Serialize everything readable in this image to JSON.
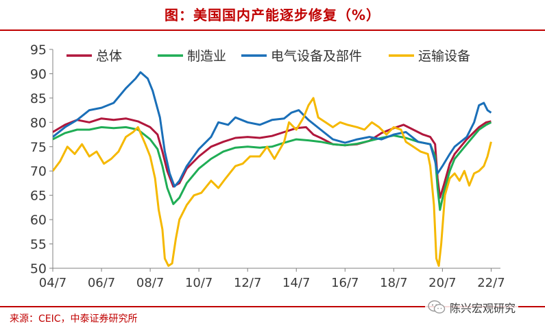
{
  "header": {
    "title": "图：美国国内产能逐步修复（%）"
  },
  "footer": {
    "source": "来源：CEIC，中泰证券研究所"
  },
  "watermark": {
    "text": "陈兴宏观研究",
    "icon": "wechat-icon"
  },
  "chart_data": {
    "type": "line",
    "title": "",
    "xlabel": "",
    "ylabel": "",
    "ylim": [
      50,
      95
    ],
    "yticks": [
      50,
      55,
      60,
      65,
      70,
      75,
      80,
      85,
      90,
      95
    ],
    "xlim": [
      2004.5,
      2022.6
    ],
    "xticks": [
      {
        "label": "04/7",
        "value": 2004.5
      },
      {
        "label": "06/7",
        "value": 2006.5
      },
      {
        "label": "08/7",
        "value": 2008.5
      },
      {
        "label": "10/7",
        "value": 2010.5
      },
      {
        "label": "12/7",
        "value": 2012.5
      },
      {
        "label": "14/7",
        "value": 2014.5
      },
      {
        "label": "16/7",
        "value": 2016.5
      },
      {
        "label": "18/7",
        "value": 2018.5
      },
      {
        "label": "20/7",
        "value": 2020.5
      },
      {
        "label": "22/7",
        "value": 2022.5
      }
    ],
    "grid": false,
    "legend_position": "top",
    "series": [
      {
        "name": "总体",
        "color": "#b0173c",
        "points": [
          [
            2004.5,
            78.0
          ],
          [
            2005.0,
            79.5
          ],
          [
            2005.5,
            80.5
          ],
          [
            2006.0,
            80.0
          ],
          [
            2006.5,
            80.8
          ],
          [
            2007.0,
            80.5
          ],
          [
            2007.5,
            80.8
          ],
          [
            2008.0,
            80.2
          ],
          [
            2008.5,
            79.0
          ],
          [
            2008.8,
            77.5
          ],
          [
            2009.0,
            74.0
          ],
          [
            2009.2,
            70.0
          ],
          [
            2009.45,
            66.8
          ],
          [
            2009.7,
            67.5
          ],
          [
            2010.0,
            70.5
          ],
          [
            2010.5,
            73.0
          ],
          [
            2011.0,
            75.0
          ],
          [
            2011.5,
            76.0
          ],
          [
            2012.0,
            76.8
          ],
          [
            2012.5,
            77.0
          ],
          [
            2013.0,
            76.8
          ],
          [
            2013.5,
            77.2
          ],
          [
            2014.0,
            78.0
          ],
          [
            2014.5,
            78.8
          ],
          [
            2014.9,
            79.0
          ],
          [
            2015.2,
            77.5
          ],
          [
            2015.5,
            76.8
          ],
          [
            2016.0,
            75.5
          ],
          [
            2016.5,
            75.3
          ],
          [
            2017.0,
            75.5
          ],
          [
            2017.5,
            76.2
          ],
          [
            2018.0,
            77.8
          ],
          [
            2018.5,
            78.8
          ],
          [
            2018.9,
            79.5
          ],
          [
            2019.3,
            78.5
          ],
          [
            2019.7,
            77.5
          ],
          [
            2020.0,
            77.0
          ],
          [
            2020.2,
            75.5
          ],
          [
            2020.3,
            68.5
          ],
          [
            2020.4,
            64.5
          ],
          [
            2020.55,
            67.0
          ],
          [
            2020.8,
            71.5
          ],
          [
            2021.0,
            73.5
          ],
          [
            2021.5,
            76.5
          ],
          [
            2022.0,
            79.0
          ],
          [
            2022.3,
            80.0
          ],
          [
            2022.5,
            80.2
          ]
        ]
      },
      {
        "name": "制造业",
        "color": "#1fad55",
        "points": [
          [
            2004.5,
            76.5
          ],
          [
            2005.0,
            77.8
          ],
          [
            2005.5,
            78.5
          ],
          [
            2006.0,
            78.5
          ],
          [
            2006.5,
            79.0
          ],
          [
            2007.0,
            78.8
          ],
          [
            2007.5,
            79.0
          ],
          [
            2008.0,
            78.5
          ],
          [
            2008.5,
            76.5
          ],
          [
            2008.8,
            74.5
          ],
          [
            2009.0,
            71.0
          ],
          [
            2009.2,
            66.5
          ],
          [
            2009.45,
            63.2
          ],
          [
            2009.7,
            64.5
          ],
          [
            2010.0,
            67.5
          ],
          [
            2010.5,
            70.5
          ],
          [
            2011.0,
            72.5
          ],
          [
            2011.5,
            74.0
          ],
          [
            2012.0,
            74.8
          ],
          [
            2012.5,
            75.0
          ],
          [
            2013.0,
            74.8
          ],
          [
            2013.5,
            75.0
          ],
          [
            2014.0,
            75.8
          ],
          [
            2014.5,
            76.5
          ],
          [
            2015.0,
            76.3
          ],
          [
            2015.5,
            76.0
          ],
          [
            2016.0,
            75.5
          ],
          [
            2016.5,
            75.3
          ],
          [
            2017.0,
            75.6
          ],
          [
            2017.5,
            76.2
          ],
          [
            2018.0,
            76.8
          ],
          [
            2018.5,
            77.3
          ],
          [
            2019.0,
            76.8
          ],
          [
            2019.5,
            76.0
          ],
          [
            2020.0,
            75.5
          ],
          [
            2020.2,
            73.0
          ],
          [
            2020.3,
            66.5
          ],
          [
            2020.4,
            62.0
          ],
          [
            2020.55,
            65.5
          ],
          [
            2020.8,
            70.0
          ],
          [
            2021.0,
            72.5
          ],
          [
            2021.5,
            75.5
          ],
          [
            2022.0,
            78.5
          ],
          [
            2022.3,
            79.5
          ],
          [
            2022.5,
            80.0
          ]
        ]
      },
      {
        "name": "电气设备及部件",
        "color": "#1a6fb8",
        "points": [
          [
            2004.5,
            77.0
          ],
          [
            2005.0,
            79.0
          ],
          [
            2005.5,
            80.5
          ],
          [
            2006.0,
            82.5
          ],
          [
            2006.5,
            83.0
          ],
          [
            2007.0,
            84.0
          ],
          [
            2007.5,
            87.0
          ],
          [
            2007.9,
            89.0
          ],
          [
            2008.1,
            90.3
          ],
          [
            2008.4,
            89.0
          ],
          [
            2008.6,
            86.5
          ],
          [
            2008.9,
            81.0
          ],
          [
            2009.1,
            74.0
          ],
          [
            2009.3,
            69.5
          ],
          [
            2009.5,
            66.8
          ],
          [
            2009.7,
            68.0
          ],
          [
            2010.0,
            71.0
          ],
          [
            2010.5,
            74.5
          ],
          [
            2011.0,
            77.0
          ],
          [
            2011.3,
            80.0
          ],
          [
            2011.7,
            79.5
          ],
          [
            2012.0,
            81.0
          ],
          [
            2012.5,
            80.0
          ],
          [
            2013.0,
            79.5
          ],
          [
            2013.5,
            80.5
          ],
          [
            2014.0,
            80.8
          ],
          [
            2014.3,
            82.0
          ],
          [
            2014.6,
            82.5
          ],
          [
            2015.0,
            80.5
          ],
          [
            2015.5,
            78.5
          ],
          [
            2016.0,
            76.5
          ],
          [
            2016.5,
            75.8
          ],
          [
            2017.0,
            76.5
          ],
          [
            2017.5,
            77.0
          ],
          [
            2018.0,
            76.5
          ],
          [
            2018.5,
            77.5
          ],
          [
            2019.0,
            78.0
          ],
          [
            2019.5,
            76.0
          ],
          [
            2020.0,
            75.5
          ],
          [
            2020.2,
            72.0
          ],
          [
            2020.3,
            69.5
          ],
          [
            2020.5,
            71.0
          ],
          [
            2020.8,
            73.5
          ],
          [
            2021.0,
            75.0
          ],
          [
            2021.5,
            77.0
          ],
          [
            2021.8,
            80.0
          ],
          [
            2022.0,
            83.5
          ],
          [
            2022.2,
            84.0
          ],
          [
            2022.35,
            82.5
          ],
          [
            2022.5,
            82.0
          ]
        ]
      },
      {
        "name": "运输设备",
        "color": "#f5b800",
        "points": [
          [
            2004.5,
            70.0
          ],
          [
            2004.8,
            72.0
          ],
          [
            2005.1,
            75.0
          ],
          [
            2005.4,
            73.5
          ],
          [
            2005.7,
            75.5
          ],
          [
            2006.0,
            73.0
          ],
          [
            2006.3,
            74.0
          ],
          [
            2006.6,
            71.5
          ],
          [
            2006.9,
            72.5
          ],
          [
            2007.2,
            74.0
          ],
          [
            2007.5,
            77.0
          ],
          [
            2007.8,
            78.0
          ],
          [
            2008.0,
            79.0
          ],
          [
            2008.3,
            75.5
          ],
          [
            2008.5,
            73.0
          ],
          [
            2008.7,
            68.5
          ],
          [
            2008.85,
            62.0
          ],
          [
            2009.0,
            58.0
          ],
          [
            2009.1,
            52.0
          ],
          [
            2009.25,
            50.5
          ],
          [
            2009.4,
            51.0
          ],
          [
            2009.55,
            56.0
          ],
          [
            2009.7,
            60.0
          ],
          [
            2010.0,
            63.0
          ],
          [
            2010.3,
            65.0
          ],
          [
            2010.6,
            65.5
          ],
          [
            2011.0,
            68.0
          ],
          [
            2011.3,
            66.5
          ],
          [
            2011.6,
            68.5
          ],
          [
            2012.0,
            71.0
          ],
          [
            2012.3,
            71.5
          ],
          [
            2012.6,
            73.0
          ],
          [
            2013.0,
            73.0
          ],
          [
            2013.3,
            75.0
          ],
          [
            2013.6,
            72.5
          ],
          [
            2014.0,
            76.0
          ],
          [
            2014.2,
            80.0
          ],
          [
            2014.5,
            78.5
          ],
          [
            2014.8,
            81.0
          ],
          [
            2015.0,
            83.5
          ],
          [
            2015.2,
            85.0
          ],
          [
            2015.4,
            81.0
          ],
          [
            2015.7,
            80.0
          ],
          [
            2016.0,
            79.0
          ],
          [
            2016.3,
            80.0
          ],
          [
            2016.6,
            79.5
          ],
          [
            2017.0,
            79.0
          ],
          [
            2017.3,
            78.5
          ],
          [
            2017.6,
            80.0
          ],
          [
            2017.9,
            79.0
          ],
          [
            2018.2,
            77.5
          ],
          [
            2018.5,
            79.0
          ],
          [
            2018.8,
            78.5
          ],
          [
            2019.0,
            76.0
          ],
          [
            2019.3,
            75.0
          ],
          [
            2019.6,
            74.0
          ],
          [
            2019.9,
            73.5
          ],
          [
            2020.0,
            71.0
          ],
          [
            2020.15,
            63.0
          ],
          [
            2020.25,
            52.0
          ],
          [
            2020.35,
            50.5
          ],
          [
            2020.45,
            55.0
          ],
          [
            2020.6,
            65.0
          ],
          [
            2020.8,
            68.5
          ],
          [
            2021.0,
            69.5
          ],
          [
            2021.2,
            68.0
          ],
          [
            2021.4,
            70.0
          ],
          [
            2021.6,
            67.0
          ],
          [
            2021.8,
            69.5
          ],
          [
            2022.0,
            70.0
          ],
          [
            2022.2,
            71.0
          ],
          [
            2022.35,
            73.0
          ],
          [
            2022.5,
            76.0
          ]
        ]
      }
    ]
  }
}
